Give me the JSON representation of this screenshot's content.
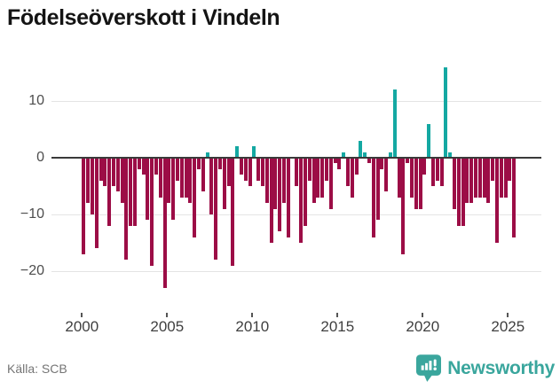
{
  "title": "Födelseöverskott i Vindeln",
  "source": "Källa: SCB",
  "logo": {
    "text": "Newsworthy"
  },
  "colors": {
    "negative_bar": "#9c0d46",
    "positive_bar": "#14a8a2",
    "zero_line": "#3a3a3a",
    "gridline": "#e4e4e4",
    "logo_teal": "#3aa69d",
    "title_text": "#141414",
    "axis_text": "#4d4d4d"
  },
  "chart_data": {
    "type": "bar",
    "title": "Födelseöverskott i Vindeln",
    "xlabel": "",
    "ylabel": "",
    "period": "quarterly",
    "start_year": 2000,
    "start_quarter": 1,
    "end_year": 2025,
    "end_quarter": 2,
    "values": [
      -17,
      -8,
      -10,
      -16,
      -4,
      -5,
      -12,
      -5,
      -6,
      -8,
      -18,
      -12,
      -12,
      -2,
      -3,
      -11,
      -19,
      -3,
      -7,
      -23,
      -8,
      -11,
      -4,
      -7,
      -7,
      -8,
      -14,
      -2,
      -6,
      1,
      -10,
      -18,
      -2,
      -9,
      -5,
      -19,
      2,
      -3,
      -4,
      -5,
      2,
      -4,
      -5,
      -8,
      -15,
      -9,
      -13,
      -8,
      -14,
      0,
      -5,
      -15,
      -12,
      -4,
      -8,
      -7,
      -7,
      -4,
      -9,
      -1,
      -2,
      1,
      -5,
      -7,
      -3,
      3,
      1,
      -1,
      -14,
      -11,
      -2,
      -6,
      1,
      12,
      -7,
      -17,
      -1,
      -7,
      -9,
      -9,
      -3,
      6,
      -5,
      -4,
      -5,
      16,
      1,
      -9,
      -12,
      -12,
      -8,
      -8,
      -7,
      -7,
      -7,
      -8,
      -4,
      -15,
      -7,
      -7,
      -4,
      -14
    ],
    "x_ticks": [
      2000,
      2005,
      2010,
      2015,
      2020,
      2025
    ],
    "x_tick_labels": [
      "2000",
      "2005",
      "2010",
      "2015",
      "2020",
      "2025"
    ],
    "y_ticks": [
      10,
      0,
      -10,
      -20
    ],
    "y_tick_labels": [
      "10",
      "0",
      "−10",
      "−20"
    ],
    "ylim": [
      -27,
      17
    ],
    "grid": true,
    "legend": "none"
  }
}
